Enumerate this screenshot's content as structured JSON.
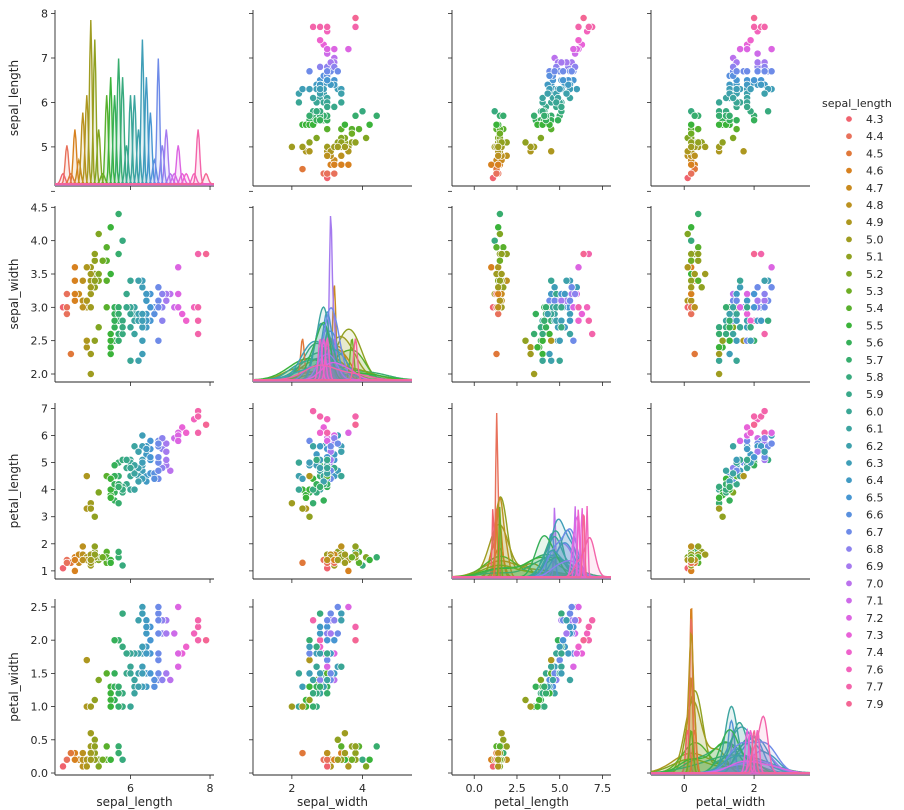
{
  "chart_data": {
    "type": "scatter",
    "variables": [
      "sepal_length",
      "sepal_width",
      "petal_length",
      "petal_width"
    ],
    "axis_ticks": {
      "sepal_length": [
        4,
        5,
        6,
        7,
        8
      ],
      "sepal_width": [
        2.0,
        2.5,
        3.0,
        3.5,
        4.0,
        4.5
      ],
      "petal_length": [
        1,
        2,
        3,
        4,
        5,
        6,
        7
      ],
      "petal_width": [
        0.0,
        0.5,
        1.0,
        1.5,
        2.0,
        2.5
      ]
    },
    "x_tick_labels": {
      "sepal_length": [
        "6",
        "8"
      ],
      "sepal_width": [
        "2",
        "4"
      ],
      "petal_length": [
        "0.0",
        "2.5",
        "5.0",
        "7.5"
      ],
      "petal_width": [
        "0",
        "2"
      ]
    },
    "y_tick_labels": {
      "sepal_length": [
        "5",
        "6",
        "7",
        "8"
      ],
      "sepal_width": [
        "2.0",
        "2.5",
        "3.0",
        "3.5",
        "4.0",
        "4.5"
      ],
      "petal_length": [
        "1",
        "2",
        "3",
        "4",
        "5",
        "6",
        "7"
      ],
      "petal_width": [
        "0.0",
        "0.5",
        "1.0",
        "1.5",
        "2.0",
        "2.5"
      ]
    },
    "legend": {
      "title": "sepal_length",
      "placement": "right",
      "entries": [
        "4.3",
        "4.4",
        "4.5",
        "4.6",
        "4.7",
        "4.8",
        "4.9",
        "5.0",
        "5.1",
        "5.2",
        "5.3",
        "5.4",
        "5.5",
        "5.6",
        "5.7",
        "5.8",
        "5.9",
        "6.0",
        "6.1",
        "6.2",
        "6.3",
        "6.4",
        "6.5",
        "6.6",
        "6.7",
        "6.8",
        "6.9",
        "7.0",
        "7.1",
        "7.2",
        "7.3",
        "7.4",
        "7.6",
        "7.7",
        "7.9"
      ],
      "colors": [
        "#f0636e",
        "#e8715b",
        "#e0783a",
        "#d7811f",
        "#c98a1e",
        "#bb911f",
        "#ad971f",
        "#9f9c20",
        "#90a121",
        "#80a622",
        "#6ead24",
        "#59b02d",
        "#3bb33a",
        "#36b059",
        "#37ad6e",
        "#38aa7e",
        "#39a88a",
        "#3aa695",
        "#3ca4a0",
        "#3ea1ac",
        "#3f9eb7",
        "#419ac3",
        "#4796d2",
        "#5990de",
        "#6e8be8",
        "#8c82ee",
        "#a57aef",
        "#bb72ed",
        "#cd6be9",
        "#dc65e2",
        "#e862d8",
        "#ef62cc",
        "#f263bc",
        "#f364aa",
        "#f46694"
      ]
    },
    "points": [
      [
        5.1,
        3.5,
        1.4,
        0.2
      ],
      [
        4.9,
        3.0,
        1.4,
        0.2
      ],
      [
        4.7,
        3.2,
        1.3,
        0.2
      ],
      [
        4.6,
        3.1,
        1.5,
        0.2
      ],
      [
        5.0,
        3.6,
        1.4,
        0.2
      ],
      [
        5.4,
        3.9,
        1.7,
        0.4
      ],
      [
        4.6,
        3.4,
        1.4,
        0.3
      ],
      [
        5.0,
        3.4,
        1.5,
        0.2
      ],
      [
        4.4,
        2.9,
        1.4,
        0.2
      ],
      [
        4.9,
        3.1,
        1.5,
        0.1
      ],
      [
        5.4,
        3.7,
        1.5,
        0.2
      ],
      [
        4.8,
        3.4,
        1.6,
        0.2
      ],
      [
        4.8,
        3.0,
        1.4,
        0.1
      ],
      [
        4.3,
        3.0,
        1.1,
        0.1
      ],
      [
        5.8,
        4.0,
        1.2,
        0.2
      ],
      [
        5.7,
        4.4,
        1.5,
        0.4
      ],
      [
        5.4,
        3.9,
        1.3,
        0.4
      ],
      [
        5.1,
        3.5,
        1.4,
        0.3
      ],
      [
        5.7,
        3.8,
        1.7,
        0.3
      ],
      [
        5.1,
        3.8,
        1.5,
        0.3
      ],
      [
        5.4,
        3.4,
        1.7,
        0.2
      ],
      [
        5.1,
        3.7,
        1.5,
        0.4
      ],
      [
        4.6,
        3.6,
        1.0,
        0.2
      ],
      [
        5.1,
        3.3,
        1.7,
        0.5
      ],
      [
        4.8,
        3.4,
        1.9,
        0.2
      ],
      [
        5.0,
        3.0,
        1.6,
        0.2
      ],
      [
        5.0,
        3.4,
        1.6,
        0.4
      ],
      [
        5.2,
        3.5,
        1.5,
        0.2
      ],
      [
        5.2,
        3.4,
        1.4,
        0.2
      ],
      [
        4.7,
        3.2,
        1.6,
        0.2
      ],
      [
        4.8,
        3.1,
        1.6,
        0.2
      ],
      [
        5.4,
        3.4,
        1.5,
        0.4
      ],
      [
        5.2,
        4.1,
        1.5,
        0.1
      ],
      [
        5.5,
        4.2,
        1.4,
        0.2
      ],
      [
        4.9,
        3.1,
        1.5,
        0.2
      ],
      [
        5.0,
        3.2,
        1.2,
        0.2
      ],
      [
        5.5,
        3.5,
        1.3,
        0.2
      ],
      [
        4.9,
        3.6,
        1.4,
        0.1
      ],
      [
        4.4,
        3.0,
        1.3,
        0.2
      ],
      [
        5.1,
        3.4,
        1.5,
        0.2
      ],
      [
        5.0,
        3.5,
        1.3,
        0.3
      ],
      [
        4.5,
        2.3,
        1.3,
        0.3
      ],
      [
        4.4,
        3.2,
        1.3,
        0.2
      ],
      [
        5.0,
        3.5,
        1.6,
        0.6
      ],
      [
        5.1,
        3.8,
        1.9,
        0.4
      ],
      [
        4.8,
        3.0,
        1.4,
        0.3
      ],
      [
        5.1,
        3.8,
        1.6,
        0.2
      ],
      [
        4.6,
        3.2,
        1.4,
        0.2
      ],
      [
        5.3,
        3.7,
        1.5,
        0.2
      ],
      [
        5.0,
        3.3,
        1.4,
        0.2
      ],
      [
        7.0,
        3.2,
        4.7,
        1.4
      ],
      [
        6.4,
        3.2,
        4.5,
        1.5
      ],
      [
        6.9,
        3.1,
        4.9,
        1.5
      ],
      [
        5.5,
        2.3,
        4.0,
        1.3
      ],
      [
        6.5,
        2.8,
        4.6,
        1.5
      ],
      [
        5.7,
        2.8,
        4.5,
        1.3
      ],
      [
        6.3,
        3.3,
        4.7,
        1.6
      ],
      [
        4.9,
        2.4,
        3.3,
        1.0
      ],
      [
        6.6,
        2.9,
        4.6,
        1.3
      ],
      [
        5.2,
        2.7,
        3.9,
        1.4
      ],
      [
        5.0,
        2.0,
        3.5,
        1.0
      ],
      [
        5.9,
        3.0,
        4.2,
        1.5
      ],
      [
        6.0,
        2.2,
        4.0,
        1.0
      ],
      [
        6.1,
        2.9,
        4.7,
        1.4
      ],
      [
        5.6,
        2.9,
        3.6,
        1.3
      ],
      [
        6.7,
        3.1,
        4.4,
        1.4
      ],
      [
        5.6,
        3.0,
        4.5,
        1.5
      ],
      [
        5.8,
        2.7,
        4.1,
        1.0
      ],
      [
        6.2,
        2.2,
        4.5,
        1.5
      ],
      [
        5.6,
        2.5,
        3.9,
        1.1
      ],
      [
        5.9,
        3.2,
        4.8,
        1.8
      ],
      [
        6.1,
        2.8,
        4.0,
        1.3
      ],
      [
        6.3,
        2.5,
        4.9,
        1.5
      ],
      [
        6.1,
        2.8,
        4.7,
        1.2
      ],
      [
        6.4,
        2.9,
        4.3,
        1.3
      ],
      [
        6.6,
        3.0,
        4.4,
        1.4
      ],
      [
        6.8,
        2.8,
        4.8,
        1.4
      ],
      [
        6.7,
        3.0,
        5.0,
        1.7
      ],
      [
        6.0,
        2.9,
        4.5,
        1.5
      ],
      [
        5.7,
        2.6,
        3.5,
        1.0
      ],
      [
        5.5,
        2.4,
        3.8,
        1.1
      ],
      [
        5.5,
        2.4,
        3.7,
        1.0
      ],
      [
        5.8,
        2.7,
        3.9,
        1.2
      ],
      [
        6.0,
        2.7,
        5.1,
        1.6
      ],
      [
        5.4,
        3.0,
        4.5,
        1.5
      ],
      [
        6.0,
        3.4,
        4.5,
        1.6
      ],
      [
        6.7,
        3.1,
        4.7,
        1.5
      ],
      [
        6.3,
        2.3,
        4.4,
        1.3
      ],
      [
        5.6,
        3.0,
        4.1,
        1.3
      ],
      [
        5.5,
        2.5,
        4.0,
        1.3
      ],
      [
        5.5,
        2.6,
        4.4,
        1.2
      ],
      [
        6.1,
        3.0,
        4.6,
        1.4
      ],
      [
        5.8,
        2.6,
        4.0,
        1.2
      ],
      [
        5.0,
        2.3,
        3.3,
        1.0
      ],
      [
        5.6,
        2.7,
        4.2,
        1.3
      ],
      [
        5.7,
        3.0,
        4.2,
        1.2
      ],
      [
        5.7,
        2.9,
        4.2,
        1.3
      ],
      [
        6.2,
        2.9,
        4.3,
        1.3
      ],
      [
        5.1,
        2.5,
        3.0,
        1.1
      ],
      [
        5.7,
        2.8,
        4.1,
        1.3
      ],
      [
        6.3,
        3.3,
        6.0,
        2.5
      ],
      [
        5.8,
        2.7,
        5.1,
        1.9
      ],
      [
        7.1,
        3.0,
        5.9,
        2.1
      ],
      [
        6.3,
        2.9,
        5.6,
        1.8
      ],
      [
        6.5,
        3.0,
        5.8,
        2.2
      ],
      [
        7.6,
        3.0,
        6.6,
        2.1
      ],
      [
        4.9,
        2.5,
        4.5,
        1.7
      ],
      [
        7.3,
        2.9,
        6.3,
        1.8
      ],
      [
        6.7,
        2.5,
        5.8,
        1.8
      ],
      [
        7.2,
        3.6,
        6.1,
        2.5
      ],
      [
        6.5,
        3.2,
        5.1,
        2.0
      ],
      [
        6.4,
        2.7,
        5.3,
        1.9
      ],
      [
        6.8,
        3.0,
        5.5,
        2.1
      ],
      [
        5.7,
        2.5,
        5.0,
        2.0
      ],
      [
        5.8,
        2.8,
        5.1,
        2.4
      ],
      [
        6.4,
        3.2,
        5.3,
        2.3
      ],
      [
        6.5,
        3.0,
        5.5,
        1.8
      ],
      [
        7.7,
        3.8,
        6.7,
        2.2
      ],
      [
        7.7,
        2.6,
        6.9,
        2.3
      ],
      [
        6.0,
        2.2,
        5.0,
        1.5
      ],
      [
        6.9,
        3.2,
        5.7,
        2.3
      ],
      [
        5.6,
        2.8,
        4.9,
        2.0
      ],
      [
        7.7,
        2.8,
        6.7,
        2.0
      ],
      [
        6.3,
        2.7,
        4.9,
        1.8
      ],
      [
        6.7,
        3.3,
        5.7,
        2.1
      ],
      [
        7.2,
        3.2,
        6.0,
        1.8
      ],
      [
        6.2,
        2.8,
        4.8,
        1.8
      ],
      [
        6.1,
        3.0,
        4.9,
        1.8
      ],
      [
        6.4,
        2.8,
        5.6,
        2.1
      ],
      [
        7.2,
        3.0,
        5.8,
        1.6
      ],
      [
        7.4,
        2.8,
        6.1,
        1.9
      ],
      [
        7.9,
        3.8,
        6.4,
        2.0
      ],
      [
        6.4,
        2.8,
        5.6,
        2.2
      ],
      [
        6.3,
        2.8,
        5.1,
        1.5
      ],
      [
        6.1,
        2.6,
        5.6,
        1.4
      ],
      [
        7.7,
        3.0,
        6.1,
        2.3
      ],
      [
        6.3,
        3.4,
        5.6,
        2.4
      ],
      [
        6.4,
        3.1,
        5.5,
        1.8
      ],
      [
        6.0,
        3.0,
        4.8,
        1.8
      ],
      [
        6.9,
        3.1,
        5.4,
        2.1
      ],
      [
        6.7,
        3.1,
        5.6,
        2.4
      ],
      [
        6.9,
        3.1,
        5.1,
        2.3
      ],
      [
        5.8,
        2.7,
        5.1,
        1.9
      ],
      [
        6.8,
        3.2,
        5.9,
        2.3
      ],
      [
        6.7,
        3.3,
        5.7,
        2.5
      ],
      [
        6.7,
        3.0,
        5.2,
        2.3
      ],
      [
        6.3,
        2.5,
        5.0,
        1.9
      ],
      [
        6.5,
        3.0,
        5.2,
        2.0
      ],
      [
        6.2,
        3.4,
        5.4,
        2.3
      ],
      [
        5.9,
        3.0,
        5.1,
        1.8
      ]
    ]
  }
}
